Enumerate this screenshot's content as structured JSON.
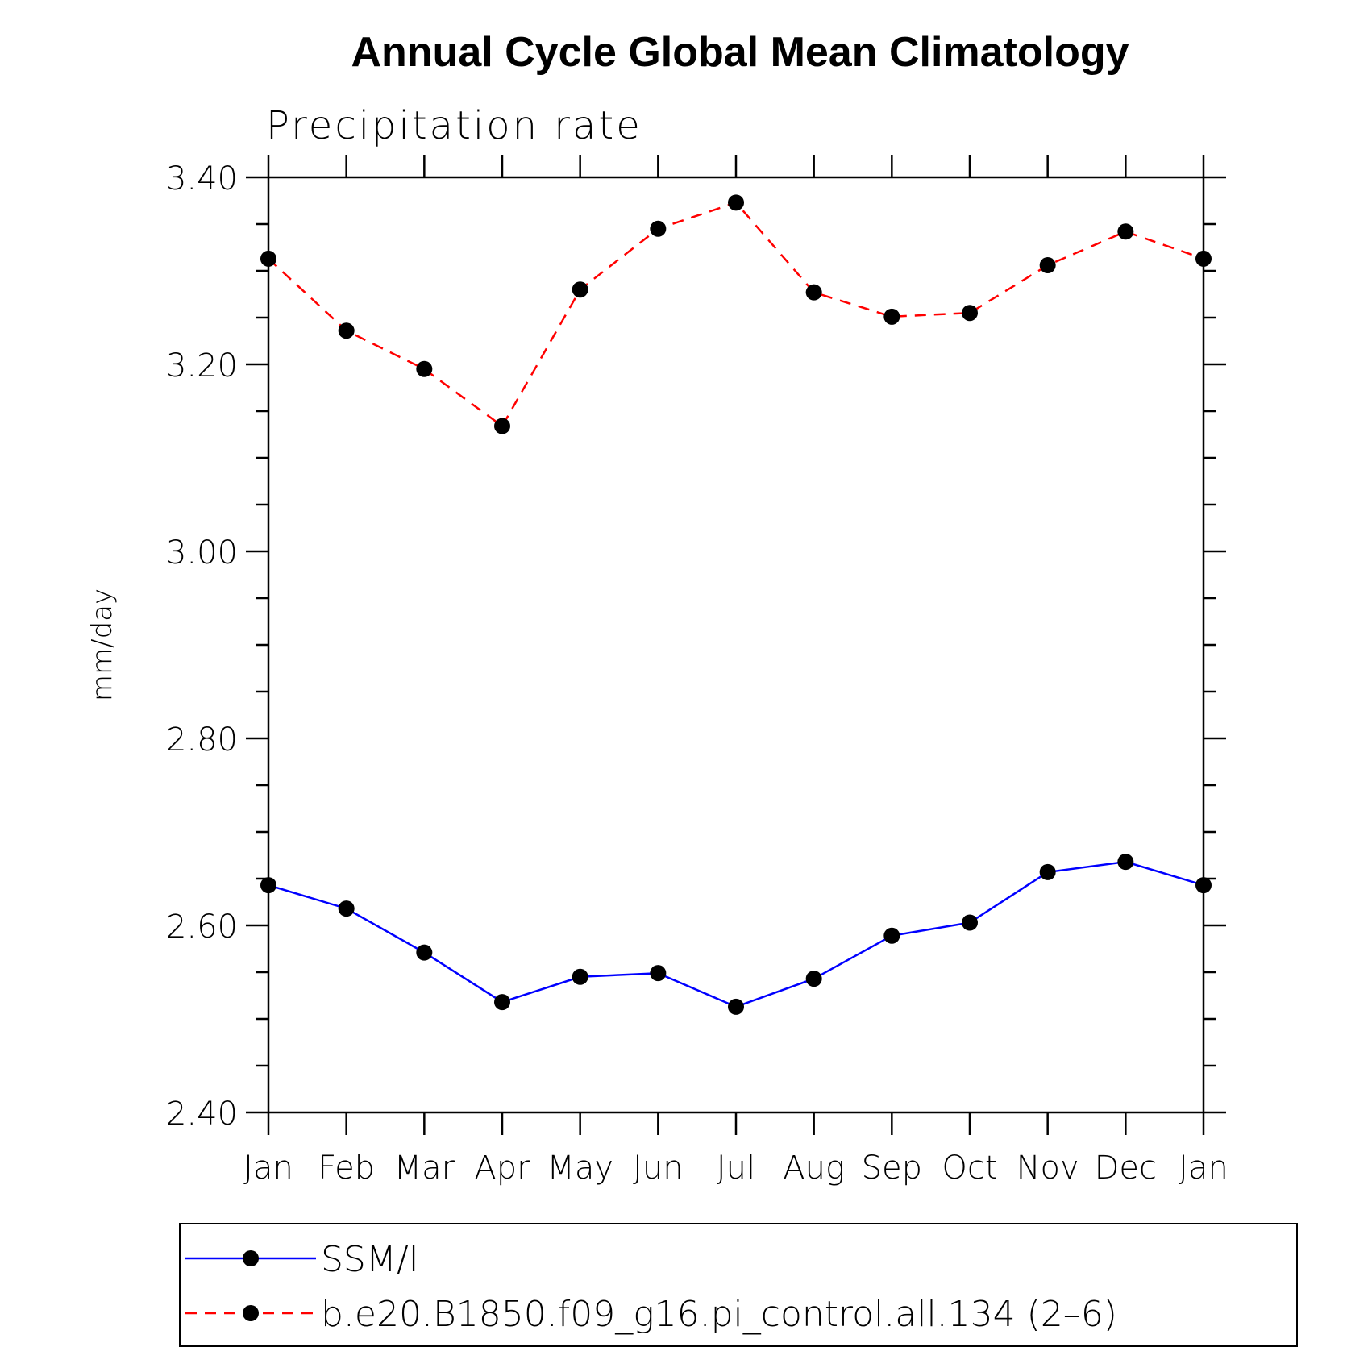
{
  "chart_data": {
    "type": "line",
    "title": "Annual Cycle Global Mean Climatology",
    "subtitle": "Precipitation rate",
    "ylabel": "mm/day",
    "xlabel": "",
    "categories": [
      "Jan",
      "Feb",
      "Mar",
      "Apr",
      "May",
      "Jun",
      "Jul",
      "Aug",
      "Sep",
      "Oct",
      "Nov",
      "Dec",
      "Jan"
    ],
    "ylim": [
      2.4,
      3.4
    ],
    "yticks": [
      "2.40",
      "2.60",
      "2.80",
      "3.00",
      "3.20",
      "3.40"
    ],
    "legend_position": "bottom",
    "grid": false,
    "series": [
      {
        "name": "SSM/I",
        "color": "#0000ff",
        "style": "solid",
        "values": [
          2.643,
          2.618,
          2.571,
          2.518,
          2.545,
          2.549,
          2.513,
          2.543,
          2.589,
          2.603,
          2.657,
          2.668,
          2.643
        ]
      },
      {
        "name": "b.e20.B1850.f09_g16.pi_control.all.134 (2–6)",
        "color": "#ff0000",
        "style": "dashed",
        "values": [
          3.313,
          3.236,
          3.195,
          3.134,
          3.28,
          3.345,
          3.373,
          3.277,
          3.251,
          3.255,
          3.306,
          3.342,
          3.313
        ]
      }
    ]
  }
}
